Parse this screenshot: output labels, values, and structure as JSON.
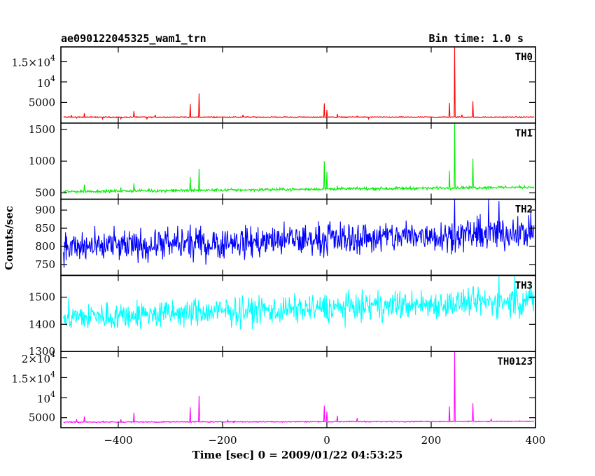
{
  "chart_data": {
    "type": "line",
    "title": "ae090122045325_wam1_trn",
    "subtitle": "Bin time: 1.0 s",
    "xlabel": "Time [sec] 0 = 2009/01/22 04:53:25",
    "ylabel": "Counts/sec",
    "xlim": [
      -510,
      400
    ],
    "x_ticks": [
      -400,
      -200,
      0,
      200,
      400
    ],
    "x_tick_labels": [
      "−400",
      "−200",
      "0",
      "200",
      "400"
    ],
    "bin_time_s": 1.0,
    "grid": false,
    "legend": "none",
    "panels": [
      {
        "name": "TH0",
        "color": "#ff0000",
        "ylim": [
          0,
          18500
        ],
        "y_ticks": [
          5000,
          10000,
          15000
        ],
        "y_tick_labels": [
          {
            "m": "5000",
            "e": ""
          },
          {
            "m": "10",
            "e": "4"
          },
          {
            "m": "1.5×10",
            "e": "4"
          }
        ],
        "baseline": 1450,
        "noise": 90,
        "slope": 0,
        "spikes": [
          [
            -480,
            1200
          ],
          [
            -465,
            2400
          ],
          [
            -430,
            1000
          ],
          [
            -395,
            1000
          ],
          [
            -390,
            1400
          ],
          [
            -370,
            2900
          ],
          [
            -345,
            900
          ],
          [
            -265,
            1300
          ],
          [
            -262,
            4600
          ],
          [
            -245,
            7200
          ],
          [
            -5,
            4800
          ],
          [
            0,
            3200
          ],
          [
            20,
            2200
          ],
          [
            58,
            1700
          ],
          [
            80,
            1000
          ],
          [
            235,
            4900
          ],
          [
            245,
            18500
          ],
          [
            280,
            5300
          ]
        ]
      },
      {
        "name": "TH1",
        "color": "#00ee00",
        "ylim": [
          400,
          1600
        ],
        "y_ticks": [
          500,
          1000,
          1500
        ],
        "y_tick_labels": [
          {
            "m": "500",
            "e": ""
          },
          {
            "m": "1000",
            "e": ""
          },
          {
            "m": "1500",
            "e": ""
          }
        ],
        "baseline": 520,
        "noise": 20,
        "slope": 0.08,
        "spikes": [
          [
            -465,
            630
          ],
          [
            -395,
            590
          ],
          [
            -370,
            650
          ],
          [
            -262,
            750
          ],
          [
            -245,
            880
          ],
          [
            -5,
            1000
          ],
          [
            0,
            830
          ],
          [
            20,
            610
          ],
          [
            235,
            850
          ],
          [
            245,
            1600
          ],
          [
            280,
            1040
          ]
        ]
      },
      {
        "name": "TH2",
        "color": "#0000ff",
        "ylim": [
          720,
          930
        ],
        "y_ticks": [
          750,
          800,
          850,
          900
        ],
        "y_tick_labels": [
          {
            "m": "750",
            "e": ""
          },
          {
            "m": "800",
            "e": ""
          },
          {
            "m": "850",
            "e": ""
          },
          {
            "m": "900",
            "e": ""
          }
        ],
        "baseline": 795,
        "noise": 38,
        "slope": 0.05,
        "spikes": [
          [
            245,
            930
          ],
          [
            310,
            930
          ],
          [
            330,
            925
          ]
        ]
      },
      {
        "name": "TH3",
        "color": "#00ffff",
        "ylim": [
          1300,
          1580
        ],
        "y_ticks": [
          1300,
          1400,
          1500
        ],
        "y_tick_labels": [
          {
            "m": "1300",
            "e": ""
          },
          {
            "m": "1400",
            "e": ""
          },
          {
            "m": "1500",
            "e": ""
          }
        ],
        "baseline": 1425,
        "noise": 45,
        "slope": 0.07,
        "spikes": [
          [
            330,
            1580
          ],
          [
            360,
            1580
          ]
        ]
      },
      {
        "name": "TH0123",
        "color": "#ff00ff",
        "ylim": [
          2500,
          21500
        ],
        "y_ticks": [
          5000,
          10000,
          15000,
          20000
        ],
        "y_tick_labels": [
          {
            "m": "5000",
            "e": ""
          },
          {
            "m": "10",
            "e": "4"
          },
          {
            "m": "1.5×10",
            "e": "4"
          },
          {
            "m": "2×10",
            "e": "4"
          }
        ],
        "baseline": 3900,
        "noise": 110,
        "slope": 0.2,
        "spikes": [
          [
            -480,
            4600
          ],
          [
            -465,
            5300
          ],
          [
            -395,
            4600
          ],
          [
            -370,
            6200
          ],
          [
            -262,
            7600
          ],
          [
            -245,
            10400
          ],
          [
            -5,
            8000
          ],
          [
            0,
            6500
          ],
          [
            20,
            5500
          ],
          [
            58,
            4900
          ],
          [
            235,
            7800
          ],
          [
            245,
            21500
          ],
          [
            280,
            8600
          ]
        ]
      }
    ]
  }
}
